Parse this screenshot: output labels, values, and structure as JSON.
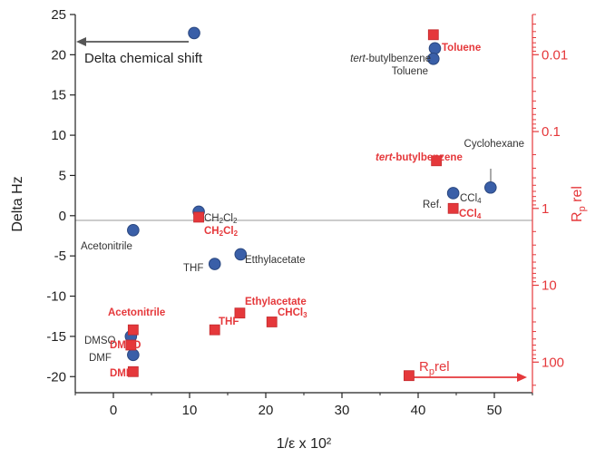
{
  "chart_data": {
    "type": "scatter",
    "xlabel": "1/ε x 10²",
    "ylabel_left": "Delta Hz",
    "ylabel_right": "Rp rel",
    "xlim": [
      -5,
      55
    ],
    "ylim_left": [
      -22,
      25
    ],
    "ylim_right_log": [
      0.003,
      250
    ],
    "x_ticks": [
      "0",
      "10",
      "20",
      "30",
      "40",
      "50"
    ],
    "y_ticks": [
      "25",
      "20",
      "15",
      "10",
      "5",
      "0",
      "-5",
      "-10",
      "-15",
      "-20"
    ],
    "right_ticks": [
      {
        "value": 0.01,
        "label": "0.01"
      },
      {
        "value": 0.1,
        "label": "0.1"
      },
      {
        "value": 1,
        "label": "1"
      },
      {
        "value": 10,
        "label": "10"
      },
      {
        "value": 100,
        "label": "100"
      }
    ],
    "zero_line": true,
    "colors": {
      "blue": "#3a5fa8",
      "blue_edge": "#2a477f",
      "red": "#e5383b",
      "axis": "#222222",
      "zero_line": "#999999"
    },
    "legend": {
      "delta": "Delta chemical shift",
      "rp_main": "R",
      "rp_sub": "p",
      "rp_rest": "rel"
    },
    "series": [
      {
        "name": "Delta chemical shift",
        "marker": "circle",
        "points": [
          {
            "x": 42.2,
            "y": 20.8,
            "label": "tert-butylbenzene"
          },
          {
            "x": 42.0,
            "y": 19.5,
            "label": "Toluene"
          },
          {
            "x": 49.5,
            "y": 3.5,
            "label": "Cyclohexane"
          },
          {
            "x": 44.6,
            "y": 2.8,
            "label": "CCl4"
          },
          {
            "x": 11.2,
            "y": 0.5,
            "label": "CH2Cl2"
          },
          {
            "x": 2.6,
            "y": -1.8,
            "label": "Acetonitrile"
          },
          {
            "x": 16.7,
            "y": -4.8,
            "label": "Etthylacetate"
          },
          {
            "x": 13.3,
            "y": -6.0,
            "label": "THF"
          },
          {
            "x": 2.3,
            "y": -15.0,
            "label": "DMSO"
          },
          {
            "x": 2.6,
            "y": -17.3,
            "label": "DMF"
          }
        ]
      },
      {
        "name": "Rp rel",
        "marker": "square",
        "axis": "right",
        "points": [
          {
            "x": 42.0,
            "rp": 0.0055,
            "label": "Toluene"
          },
          {
            "x": 42.4,
            "rp": 0.24,
            "label": "tert-butylbenzene"
          },
          {
            "x": 44.6,
            "rp": 1.0,
            "label": "CCl4"
          },
          {
            "x": 11.2,
            "rp": 1.3,
            "label": "CH2Cl2"
          },
          {
            "x": 16.6,
            "rp": 23,
            "label": "Ethylacetate"
          },
          {
            "x": 20.8,
            "rp": 30,
            "label": "CHCl3"
          },
          {
            "x": 13.3,
            "rp": 38,
            "label": "THF"
          },
          {
            "x": 2.6,
            "rp": 38,
            "label": "Acetonitrile"
          },
          {
            "x": 2.3,
            "rp": 60,
            "label": "DMSO"
          },
          {
            "x": 2.6,
            "rp": 133,
            "label": "DMF"
          },
          {
            "x": 38.8,
            "rp": 150,
            "label": ""
          }
        ]
      }
    ],
    "annotations": {
      "tert_prefix": "tert",
      "tert_suffix": "-butylbenzene",
      "toluene": "Toluene",
      "cyclohexane": "Cyclohexane",
      "ref": "Ref.",
      "ccl4_main": "CCl",
      "ccl4_sub": "4",
      "ch2cl2_a": "CH",
      "ch2cl2_b": "2",
      "ch2cl2_c": "Cl",
      "ch2cl2_d": "2",
      "acetonitrile": "Acetonitrile",
      "thf": "THF",
      "etthylacetate": "Etthylacetate",
      "ethylacetate": "Ethylacetate",
      "chcl3_main": "CHCl",
      "chcl3_sub": "3",
      "dmso": "DMSO",
      "dmf": "DMF"
    }
  }
}
